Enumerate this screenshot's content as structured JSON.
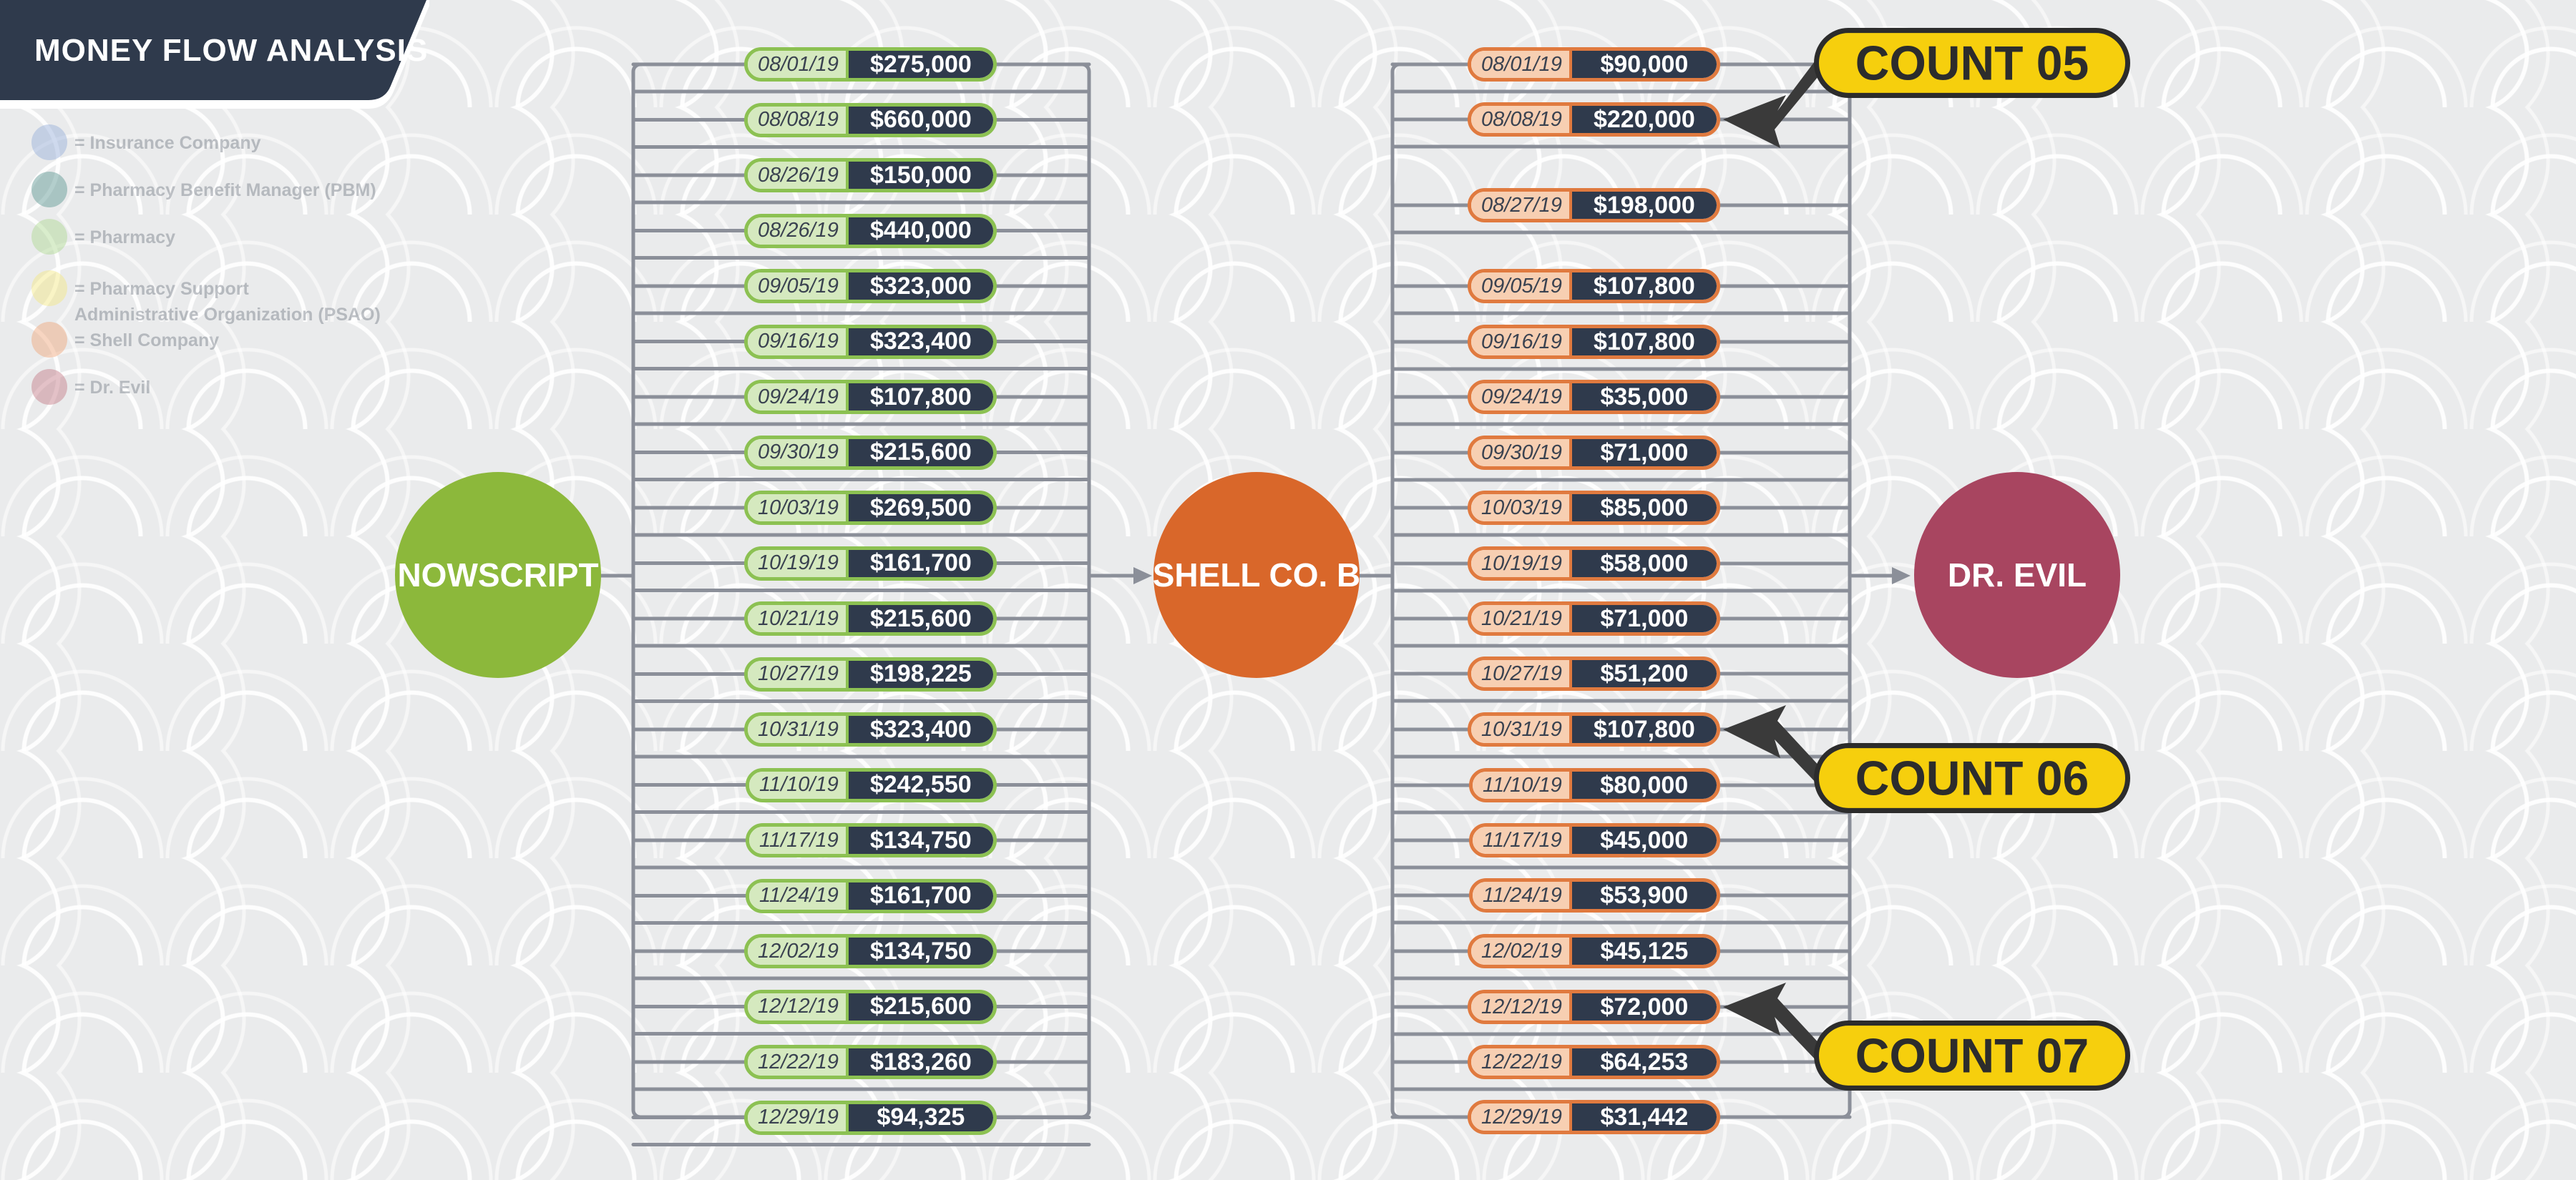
{
  "header": {
    "title": "MONEY FLOW ANALYSIS"
  },
  "legend": [
    {
      "label": "= Insurance Company",
      "color": "#8fa9d9"
    },
    {
      "label": "= Pharmacy Benefit Manager (PBM)",
      "color": "#4f8f8a"
    },
    {
      "label": "= Pharmacy",
      "color": "#a9d88a"
    },
    {
      "label": "= Pharmacy Support\nAdministrative Organization (PSAO)",
      "color": "#f5e87a"
    },
    {
      "label": "= Shell Company",
      "color": "#f0a070"
    },
    {
      "label": "= Dr. Evil",
      "color": "#c0707d"
    }
  ],
  "nodes": {
    "source": {
      "label": "NOWSCRIPT",
      "color": "#8cb83b"
    },
    "middle": {
      "label": "SHELL CO. B",
      "color": "#d9672a"
    },
    "target": {
      "label": "DR. EVIL",
      "color": "#a84560"
    }
  },
  "flows_to_shell": [
    {
      "date": "08/01/19",
      "amount": "$275,000"
    },
    {
      "date": "08/08/19",
      "amount": "$660,000"
    },
    {
      "date": "08/26/19",
      "amount": "$150,000"
    },
    {
      "date": "08/26/19",
      "amount": "$440,000"
    },
    {
      "date": "09/05/19",
      "amount": "$323,000"
    },
    {
      "date": "09/16/19",
      "amount": "$323,400"
    },
    {
      "date": "09/24/19",
      "amount": "$107,800"
    },
    {
      "date": "09/30/19",
      "amount": "$215,600"
    },
    {
      "date": "10/03/19",
      "amount": "$269,500"
    },
    {
      "date": "10/19/19",
      "amount": "$161,700"
    },
    {
      "date": "10/21/19",
      "amount": "$215,600"
    },
    {
      "date": "10/27/19",
      "amount": "$198,225"
    },
    {
      "date": "10/31/19",
      "amount": "$323,400"
    },
    {
      "date": "11/10/19",
      "amount": "$242,550"
    },
    {
      "date": "11/17/19",
      "amount": "$134,750"
    },
    {
      "date": "11/24/19",
      "amount": "$161,700"
    },
    {
      "date": "12/02/19",
      "amount": "$134,750"
    },
    {
      "date": "12/12/19",
      "amount": "$215,600"
    },
    {
      "date": "12/22/19",
      "amount": "$183,260"
    },
    {
      "date": "12/29/19",
      "amount": "$94,325"
    }
  ],
  "flows_to_evil": [
    {
      "date": "08/01/19",
      "amount": "$90,000"
    },
    {
      "date": "08/08/19",
      "amount": "$220,000"
    },
    {
      "date": "08/27/19",
      "amount": "$198,000"
    },
    {
      "date": "09/05/19",
      "amount": "$107,800"
    },
    {
      "date": "09/16/19",
      "amount": "$107,800"
    },
    {
      "date": "09/24/19",
      "amount": "$35,000"
    },
    {
      "date": "09/30/19",
      "amount": "$71,000"
    },
    {
      "date": "10/03/19",
      "amount": "$85,000"
    },
    {
      "date": "10/19/19",
      "amount": "$58,000"
    },
    {
      "date": "10/21/19",
      "amount": "$71,000"
    },
    {
      "date": "10/27/19",
      "amount": "$51,200"
    },
    {
      "date": "10/31/19",
      "amount": "$107,800"
    },
    {
      "date": "11/10/19",
      "amount": "$80,000"
    },
    {
      "date": "11/17/19",
      "amount": "$45,000"
    },
    {
      "date": "11/24/19",
      "amount": "$53,900"
    },
    {
      "date": "12/02/19",
      "amount": "$45,125"
    },
    {
      "date": "12/12/19",
      "amount": "$72,000"
    },
    {
      "date": "12/22/19",
      "amount": "$64,253"
    },
    {
      "date": "12/29/19",
      "amount": "$31,442"
    }
  ],
  "counts": [
    {
      "label": "COUNT 05",
      "flow_ref": "08/08/19 $220,000"
    },
    {
      "label": "COUNT 06",
      "flow_ref": "10/31/19 $107,800"
    },
    {
      "label": "COUNT 07",
      "flow_ref": "12/12/19 $72,000"
    }
  ],
  "colors": {
    "wire": "#8b8f99",
    "pill_green": "#8cc152",
    "pill_orange": "#e07a3f",
    "amount_bg": "#2f3a4c",
    "callout": "#f6cf0d",
    "header_bg": "#2f3a4c"
  }
}
